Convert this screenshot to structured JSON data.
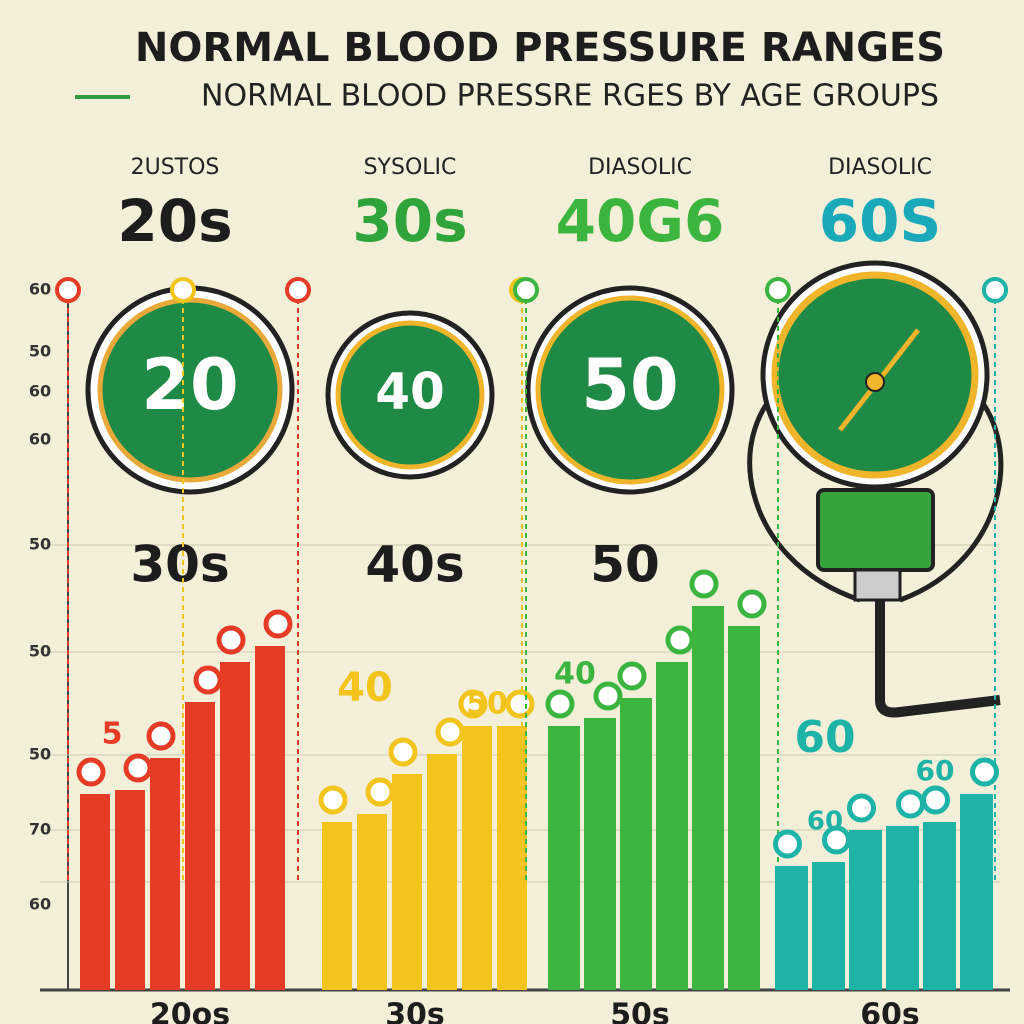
{
  "chart_data": {
    "type": "bar",
    "title": "NORMAL BLOOD PRESSURE RANGES",
    "subtitle": "NORMAL BLOOD PRESSRE RGES BY AGE GROUPS",
    "ylim": [
      0,
      100
    ],
    "axis_labels": [
      "60",
      "50",
      "60",
      "60",
      "50",
      "50",
      "50",
      "70",
      "60"
    ],
    "series": [
      {
        "name": "20os",
        "heading": "2USTOS",
        "heading_age": "20s",
        "gauge": "20",
        "mid_label": "30s",
        "color": "#e63b25",
        "values": [
          49,
          50,
          58,
          72,
          82,
          86
        ]
      },
      {
        "name": "30s",
        "heading": "SYSOLIC",
        "heading_age": "30s",
        "gauge": "40",
        "mid_label": "40s",
        "color": "#f2c41c",
        "values": [
          42,
          44,
          54,
          59,
          66,
          66
        ]
      },
      {
        "name": "50s",
        "heading": "DIASOLIC",
        "heading_age": "40G6",
        "gauge": "50",
        "mid_label": "50",
        "color": "#3cb53f",
        "values": [
          66,
          68,
          73,
          82,
          96,
          91
        ]
      },
      {
        "name": "60s",
        "heading": "DIASOLIC",
        "heading_age": "60S",
        "color": "#1db3a6",
        "values": [
          31,
          32,
          40,
          41,
          42,
          49
        ]
      }
    ],
    "annotations": [
      "5",
      "40",
      "50",
      "40",
      "60",
      "60",
      "60"
    ]
  }
}
